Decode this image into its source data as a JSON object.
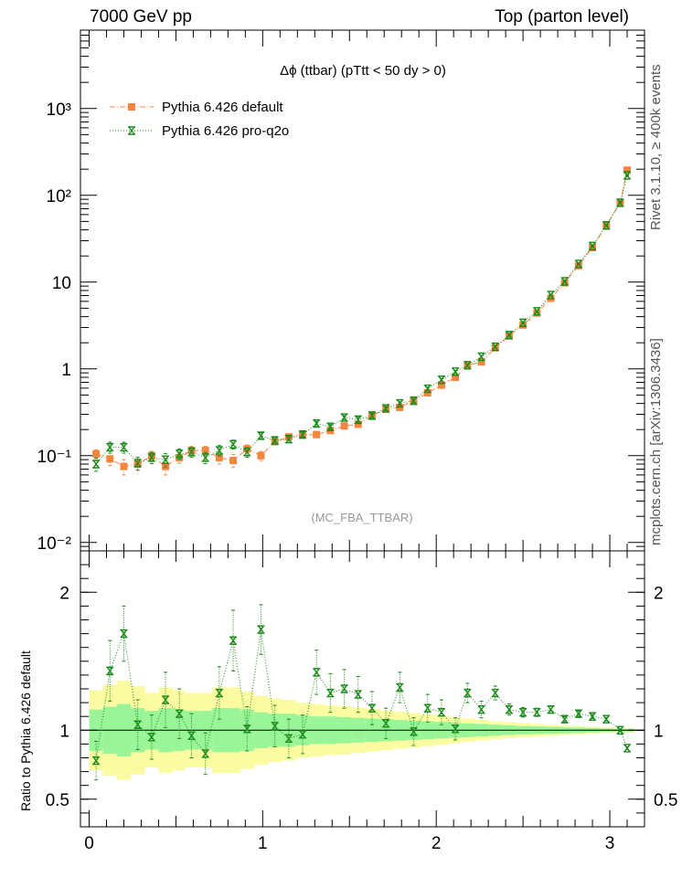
{
  "header": {
    "left": "7000 GeV pp",
    "right": "Top (parton level)"
  },
  "side_labels": {
    "rivet": "Rivet 3.1.10, ≥ 400k events",
    "mcplots": "mcplots.cern.ch [arXiv:1306.3436]"
  },
  "chart_data": [
    {
      "type": "scatter",
      "panel": "main",
      "title": "Δϕ (ttbar) (pTtt < 50 dy > 0)",
      "analysis_label": "(MC_FBA_TTBAR)",
      "xlabel": "",
      "ylabel": "",
      "xlim": [
        -0.05,
        3.2
      ],
      "ylim": [
        0.008,
        8000
      ],
      "log_y": true,
      "y_tick_labels": [
        "10⁻²",
        "10⁻¹",
        "1",
        "10",
        "10²",
        "10³"
      ],
      "legend_position": "top-left",
      "series": [
        {
          "name": "Pythia 6.426 default",
          "color": "#f5853f",
          "marker": "square",
          "line_style": "dash-dot",
          "x": [
            0.04,
            0.12,
            0.2,
            0.28,
            0.36,
            0.44,
            0.52,
            0.59,
            0.67,
            0.75,
            0.83,
            0.91,
            0.99,
            1.07,
            1.15,
            1.23,
            1.31,
            1.39,
            1.47,
            1.55,
            1.63,
            1.71,
            1.79,
            1.87,
            1.95,
            2.03,
            2.11,
            2.18,
            2.26,
            2.34,
            2.42,
            2.5,
            2.58,
            2.66,
            2.74,
            2.82,
            2.9,
            2.98,
            3.06,
            3.1
          ],
          "y": [
            0.105,
            0.092,
            0.075,
            0.08,
            0.1,
            0.075,
            0.095,
            0.115,
            0.115,
            0.095,
            0.088,
            0.12,
            0.1,
            0.145,
            0.165,
            0.175,
            0.175,
            0.195,
            0.22,
            0.23,
            0.29,
            0.345,
            0.36,
            0.43,
            0.53,
            0.65,
            0.8,
            1.1,
            1.2,
            1.75,
            2.4,
            3.2,
            4.4,
            6.5,
            9.8,
            15.5,
            25,
            45,
            82,
            195
          ],
          "y_err": [
            0.012,
            0.015,
            0.015,
            0.012,
            0.012,
            0.015,
            0.013,
            0.013,
            0.013,
            0.015,
            0.015,
            0.013,
            0.012,
            0.012,
            0.012,
            0.012,
            0.012,
            0.013,
            0.014,
            0.015,
            0.016,
            0.016,
            0.018,
            0.02,
            0.024,
            0.028,
            0.03,
            0.035,
            0.04,
            0.05,
            0.06,
            0.07,
            0.09,
            0.12,
            0.15,
            0.2,
            0.3,
            0.5,
            0.8,
            1.5
          ]
        },
        {
          "name": "Pythia 6.426 pro-q2o",
          "color": "#1a8a1a",
          "marker": "star",
          "line_style": "dotted",
          "x": [
            0.04,
            0.12,
            0.2,
            0.28,
            0.36,
            0.44,
            0.52,
            0.59,
            0.67,
            0.75,
            0.83,
            0.91,
            0.99,
            1.07,
            1.15,
            1.23,
            1.31,
            1.39,
            1.47,
            1.55,
            1.63,
            1.71,
            1.79,
            1.87,
            1.95,
            2.03,
            2.11,
            2.18,
            2.26,
            2.34,
            2.42,
            2.5,
            2.58,
            2.66,
            2.74,
            2.82,
            2.9,
            2.98,
            3.06,
            3.1
          ],
          "y": [
            0.08,
            0.125,
            0.125,
            0.082,
            0.095,
            0.09,
            0.105,
            0.11,
            0.095,
            0.115,
            0.135,
            0.11,
            0.17,
            0.15,
            0.155,
            0.175,
            0.235,
            0.215,
            0.275,
            0.26,
            0.29,
            0.35,
            0.4,
            0.43,
            0.59,
            0.75,
            0.93,
            1.1,
            1.38,
            1.8,
            2.45,
            3.4,
            4.6,
            7.1,
            10.2,
            16.2,
            26,
            45,
            82,
            170
          ],
          "y_err": [
            0.014,
            0.018,
            0.018,
            0.014,
            0.014,
            0.016,
            0.014,
            0.014,
            0.014,
            0.016,
            0.016,
            0.014,
            0.014,
            0.013,
            0.013,
            0.013,
            0.014,
            0.014,
            0.015,
            0.016,
            0.017,
            0.018,
            0.019,
            0.021,
            0.025,
            0.03,
            0.032,
            0.036,
            0.042,
            0.052,
            0.062,
            0.075,
            0.095,
            0.125,
            0.16,
            0.21,
            0.32,
            0.52,
            0.85,
            1.6
          ]
        }
      ]
    },
    {
      "type": "scatter",
      "panel": "ratio",
      "ylabel": "Ratio to Pythia 6.426 default",
      "xlabel": "",
      "xlim": [
        -0.05,
        3.2
      ],
      "ylim": [
        0.3,
        2.3
      ],
      "x_ticks": [
        0,
        1,
        2,
        3
      ],
      "y_ticks": [
        0.5,
        1,
        2
      ],
      "reference_line": 1,
      "band_colors": {
        "inner": "#99f598",
        "outer": "#fbfba1"
      },
      "bands": {
        "x_edges": [
          0,
          0.08,
          0.16,
          0.24,
          0.32,
          0.4,
          0.48,
          0.55,
          0.63,
          0.71,
          0.79,
          0.87,
          0.95,
          1.03,
          1.11,
          1.19,
          1.27,
          1.35,
          1.43,
          1.51,
          1.59,
          1.67,
          1.75,
          1.83,
          1.91,
          1.99,
          2.07,
          2.14,
          2.22,
          2.3,
          2.38,
          2.46,
          2.54,
          2.62,
          2.7,
          2.78,
          2.86,
          2.94,
          3.02,
          3.14
        ],
        "inner_half_width": [
          0.15,
          0.17,
          0.19,
          0.16,
          0.14,
          0.16,
          0.15,
          0.14,
          0.14,
          0.16,
          0.16,
          0.15,
          0.13,
          0.12,
          0.12,
          0.11,
          0.1,
          0.1,
          0.095,
          0.09,
          0.085,
          0.08,
          0.075,
          0.07,
          0.065,
          0.06,
          0.055,
          0.05,
          0.045,
          0.04,
          0.035,
          0.03,
          0.028,
          0.025,
          0.022,
          0.019,
          0.016,
          0.013,
          0.01
        ],
        "outer_half_width": [
          0.29,
          0.33,
          0.36,
          0.32,
          0.27,
          0.31,
          0.29,
          0.27,
          0.27,
          0.31,
          0.31,
          0.28,
          0.25,
          0.23,
          0.22,
          0.2,
          0.19,
          0.18,
          0.175,
          0.165,
          0.155,
          0.145,
          0.135,
          0.125,
          0.115,
          0.105,
          0.095,
          0.085,
          0.075,
          0.065,
          0.058,
          0.05,
          0.045,
          0.04,
          0.035,
          0.03,
          0.025,
          0.02,
          0.015
        ]
      },
      "series": [
        {
          "name": "Pythia 6.426 pro-q2o",
          "color": "#1a8a1a",
          "marker": "star",
          "x": [
            0.04,
            0.12,
            0.2,
            0.28,
            0.36,
            0.44,
            0.52,
            0.59,
            0.67,
            0.75,
            0.83,
            0.91,
            0.99,
            1.07,
            1.15,
            1.23,
            1.31,
            1.39,
            1.47,
            1.55,
            1.63,
            1.71,
            1.79,
            1.87,
            1.95,
            2.03,
            2.11,
            2.18,
            2.26,
            2.34,
            2.42,
            2.5,
            2.58,
            2.66,
            2.74,
            2.82,
            2.9,
            2.98,
            3.06,
            3.1
          ],
          "y": [
            0.78,
            1.43,
            1.7,
            1.04,
            0.95,
            1.22,
            1.12,
            0.96,
            0.83,
            1.27,
            1.65,
            1.01,
            1.73,
            1.03,
            0.94,
            0.97,
            1.42,
            1.27,
            1.3,
            1.26,
            1.16,
            1.05,
            1.31,
            0.99,
            1.16,
            1.13,
            1.01,
            1.27,
            1.15,
            1.27,
            1.15,
            1.13,
            1.13,
            1.15,
            1.08,
            1.12,
            1.1,
            1.08,
            1.0,
            0.87
          ],
          "y_err": [
            0.14,
            0.22,
            0.2,
            0.18,
            0.16,
            0.2,
            0.18,
            0.16,
            0.15,
            0.19,
            0.22,
            0.16,
            0.18,
            0.15,
            0.14,
            0.14,
            0.16,
            0.14,
            0.14,
            0.13,
            0.12,
            0.11,
            0.11,
            0.1,
            0.1,
            0.09,
            0.08,
            0.07,
            0.06,
            0.05,
            0.04,
            0.035,
            0.03,
            0.025,
            0.02,
            0.02,
            0.015,
            0.012,
            0.01,
            0.01
          ]
        }
      ]
    }
  ]
}
